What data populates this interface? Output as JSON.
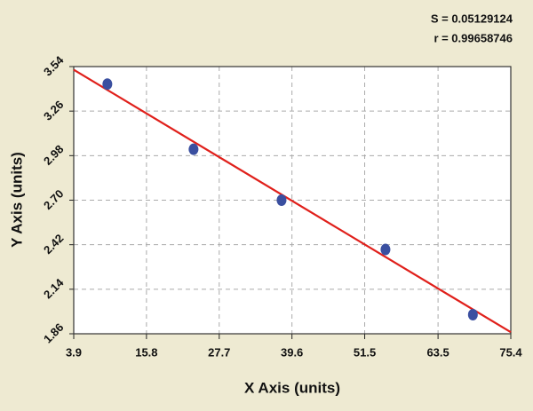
{
  "chart_data": {
    "type": "scatter",
    "annotations": [
      "S = 0.05129124",
      "r = 0.99658746"
    ],
    "x_label": "X Axis (units)",
    "y_label": "Y Axis (units)",
    "x": [
      9.4,
      23.5,
      37.9,
      54.9,
      69.2
    ],
    "values": [
      3.43,
      3.02,
      2.7,
      2.39,
      1.98
    ],
    "color": "#3a4fa0",
    "fit": {
      "x": [
        3.9,
        75.4
      ],
      "values": [
        3.52,
        1.87
      ],
      "color": "#e0201b"
    },
    "xlim": [
      3.9,
      75.4
    ],
    "xticks": [
      3.9,
      15.8,
      27.7,
      39.6,
      51.5,
      63.5,
      75.4
    ],
    "ylim": [
      1.86,
      3.54
    ],
    "yticks": [
      1.86,
      2.14,
      2.42,
      {
        "value": 2.7,
        "label": "2.70"
      },
      2.98,
      3.26,
      3.54
    ],
    "grid": true
  }
}
